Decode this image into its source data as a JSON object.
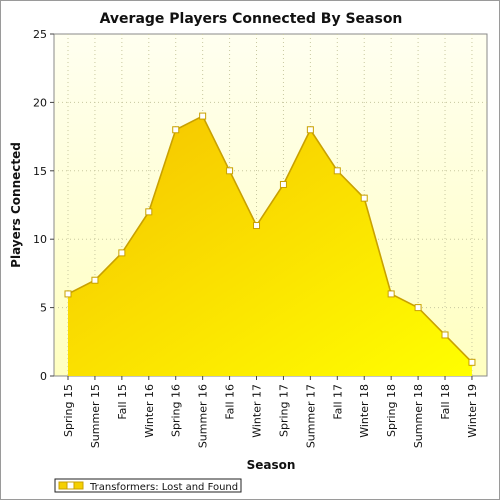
{
  "chart_data": {
    "type": "area",
    "title": "Average Players Connected By Season",
    "xlabel": "Season",
    "ylabel": "Players Connected",
    "categories": [
      "Spring 15",
      "Summer 15",
      "Fall 15",
      "Winter 16",
      "Spring 16",
      "Summer 16",
      "Fall 16",
      "Winter 17",
      "Spring 17",
      "Summer 17",
      "Fall 17",
      "Winter 18",
      "Spring 18",
      "Summer 18",
      "Fall 18",
      "Winter 19"
    ],
    "series": [
      {
        "name": "Transformers: Lost and Found",
        "values": [
          6,
          7,
          9,
          12,
          18,
          19,
          15,
          11,
          14,
          18,
          15,
          13,
          6,
          5,
          3,
          1
        ]
      }
    ],
    "ylim": [
      0,
      25
    ],
    "yticks": [
      0,
      5,
      10,
      15,
      20,
      25
    ],
    "grid": true,
    "legend_position": "bottom-left",
    "colors": {
      "area_top": "#f5c200",
      "area_bottom": "#ffff00",
      "line": "#c9a100",
      "marker_fill": "#ffffff",
      "plot_bg_top": "#fffff0",
      "plot_bg_bottom": "#ffffc0",
      "grid": "#c8c8a0"
    }
  }
}
